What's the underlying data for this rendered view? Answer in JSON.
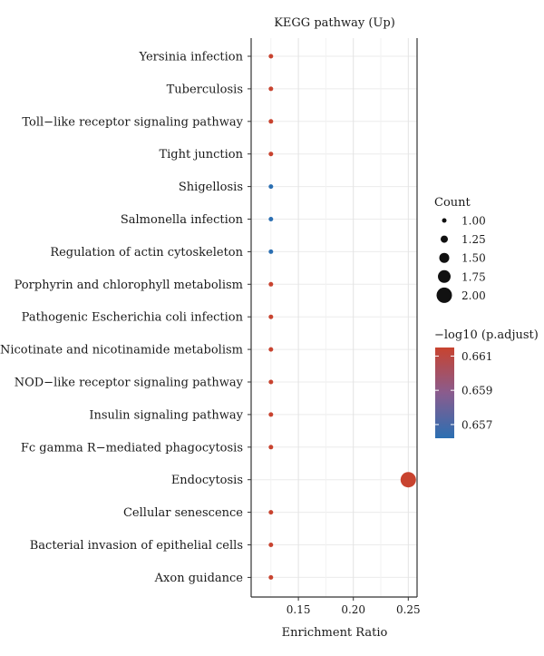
{
  "chart_data": {
    "type": "scatter",
    "title": "KEGG pathway (Up)",
    "xlabel": "Enrichment Ratio",
    "ylabel": "",
    "xlim": [
      0.107,
      0.258
    ],
    "xticks": [
      0.15,
      0.2,
      0.25
    ],
    "xtick_labels": [
      "0.15",
      "0.20",
      "0.25"
    ],
    "grid": true,
    "categories": [
      "Yersinia infection",
      "Tuberculosis",
      "Toll−like receptor signaling pathway",
      "Tight junction",
      "Shigellosis",
      "Salmonella infection",
      "Regulation of actin cytoskeleton",
      "Porphyrin and chlorophyll metabolism",
      "Pathogenic Escherichia coli infection",
      "Nicotinate and nicotinamide metabolism",
      "NOD−like receptor signaling pathway",
      "Insulin signaling pathway",
      "Fc gamma R−mediated phagocytosis",
      "Endocytosis",
      "Cellular senescence",
      "Bacterial invasion of epithelial cells",
      "Axon guidance"
    ],
    "points": [
      {
        "x": 0.125,
        "count": 1,
        "padj": 0.6615
      },
      {
        "x": 0.125,
        "count": 1,
        "padj": 0.6615
      },
      {
        "x": 0.125,
        "count": 1,
        "padj": 0.6615
      },
      {
        "x": 0.125,
        "count": 1,
        "padj": 0.6615
      },
      {
        "x": 0.125,
        "count": 1,
        "padj": 0.6562
      },
      {
        "x": 0.125,
        "count": 1,
        "padj": 0.6562
      },
      {
        "x": 0.125,
        "count": 1,
        "padj": 0.6562
      },
      {
        "x": 0.125,
        "count": 1,
        "padj": 0.6615
      },
      {
        "x": 0.125,
        "count": 1,
        "padj": 0.6615
      },
      {
        "x": 0.125,
        "count": 1,
        "padj": 0.6615
      },
      {
        "x": 0.125,
        "count": 1,
        "padj": 0.6615
      },
      {
        "x": 0.125,
        "count": 1,
        "padj": 0.6615
      },
      {
        "x": 0.125,
        "count": 1,
        "padj": 0.6615
      },
      {
        "x": 0.25,
        "count": 2,
        "padj": 0.6615
      },
      {
        "x": 0.125,
        "count": 1,
        "padj": 0.6615
      },
      {
        "x": 0.125,
        "count": 1,
        "padj": 0.6615
      },
      {
        "x": 0.125,
        "count": 1,
        "padj": 0.6615
      }
    ],
    "size_legend": {
      "title": "Count",
      "values": [
        1.0,
        1.25,
        1.5,
        1.75,
        2.0
      ],
      "labels": [
        "1.00",
        "1.25",
        "1.50",
        "1.75",
        "2.00"
      ]
    },
    "color_legend": {
      "title": "−log10 (p.adjust)",
      "range": [
        0.6562,
        0.6615
      ],
      "ticks": [
        0.657,
        0.659,
        0.661
      ],
      "tick_labels": [
        "0.657",
        "0.659",
        "0.661"
      ],
      "low_color": "#2b6fb2",
      "high_color": "#c8432f"
    }
  }
}
